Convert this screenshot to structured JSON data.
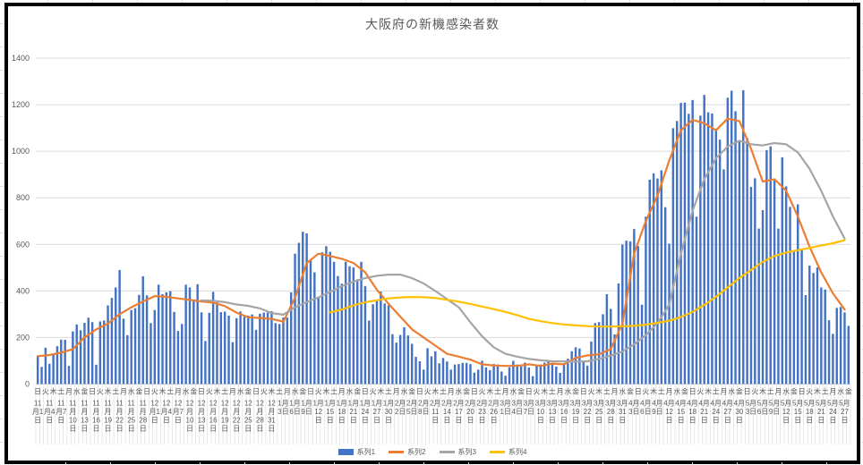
{
  "chart_data": {
    "type": "combo",
    "title": "大阪府の新機感染者数",
    "ylim": [
      0,
      1400
    ],
    "y_ticks": [
      0,
      200,
      400,
      600,
      800,
      1000,
      1200,
      1400
    ],
    "grid": true,
    "legend_position": "bottom",
    "n_days": 209,
    "x_start_date": "11月1日",
    "x_end_date": "5月28日",
    "weekday_cycle": [
      "日",
      "火",
      "木",
      "土",
      "月",
      "水",
      "金"
    ],
    "weekday_label_count": 105,
    "weekday_label_step": 2,
    "date_label_step": 3,
    "date_labels": [
      [
        "11",
        "月1",
        "日"
      ],
      [
        "11",
        "月4",
        "日"
      ],
      [
        "11",
        "月7",
        "日"
      ],
      [
        "11",
        "月",
        "10",
        "日"
      ],
      [
        "11",
        "月",
        "13",
        "日"
      ],
      [
        "11",
        "月",
        "16",
        "日"
      ],
      [
        "11",
        "月",
        "19",
        "日"
      ],
      [
        "11",
        "月",
        "22",
        "日"
      ],
      [
        "11",
        "月",
        "25",
        "日"
      ],
      [
        "11",
        "月",
        "28",
        "日"
      ],
      [
        "12",
        "月1",
        "日"
      ],
      [
        "12",
        "月4",
        "日"
      ],
      [
        "12",
        "月7",
        "日"
      ],
      [
        "12",
        "月",
        "10",
        "日"
      ],
      [
        "12",
        "月",
        "13",
        "日"
      ],
      [
        "12",
        "月",
        "16",
        "日"
      ],
      [
        "12",
        "月",
        "19",
        "日"
      ],
      [
        "12",
        "月",
        "22",
        "日"
      ],
      [
        "12",
        "月",
        "25",
        "日"
      ],
      [
        "12",
        "月",
        "28",
        "日"
      ],
      [
        "12",
        "月",
        "31",
        "日"
      ],
      [
        "1月",
        "3日"
      ],
      [
        "1月",
        "6日"
      ],
      [
        "1月",
        "9日"
      ],
      [
        "1月",
        "12",
        "日"
      ],
      [
        "1月",
        "15",
        "日"
      ],
      [
        "1月",
        "18",
        "日"
      ],
      [
        "1月",
        "21",
        "日"
      ],
      [
        "1月",
        "24",
        "日"
      ],
      [
        "1月",
        "27",
        "日"
      ],
      [
        "1月",
        "30",
        "日"
      ],
      [
        "2月",
        "2日"
      ],
      [
        "2月",
        "5日"
      ],
      [
        "2月",
        "8日"
      ],
      [
        "2月",
        "11",
        "日"
      ],
      [
        "2月",
        "14",
        "日"
      ],
      [
        "2月",
        "17",
        "日"
      ],
      [
        "2月",
        "20",
        "日"
      ],
      [
        "2月",
        "23",
        "日"
      ],
      [
        "2月",
        "26",
        "日"
      ],
      [
        "3月",
        "1日"
      ],
      [
        "3月",
        "4日"
      ],
      [
        "3月",
        "7日"
      ],
      [
        "3月",
        "10",
        "日"
      ],
      [
        "3月",
        "13",
        "日"
      ],
      [
        "3月",
        "16",
        "日"
      ],
      [
        "3月",
        "19",
        "日"
      ],
      [
        "3月",
        "22",
        "日"
      ],
      [
        "3月",
        "25",
        "日"
      ],
      [
        "3月",
        "28",
        "日"
      ],
      [
        "3月",
        "31",
        "日"
      ],
      [
        "4月",
        "3日"
      ],
      [
        "4月",
        "6日"
      ],
      [
        "4月",
        "9日"
      ],
      [
        "4月",
        "12",
        "日"
      ],
      [
        "4月",
        "15",
        "日"
      ],
      [
        "4月",
        "18",
        "日"
      ],
      [
        "4月",
        "21",
        "日"
      ],
      [
        "4月",
        "24",
        "日"
      ],
      [
        "4月",
        "27",
        "日"
      ],
      [
        "4月",
        "30",
        "日"
      ],
      [
        "5月",
        "3日"
      ],
      [
        "5月",
        "6日"
      ],
      [
        "5月",
        "9日"
      ],
      [
        "5月",
        "12",
        "日"
      ],
      [
        "5月",
        "15",
        "日"
      ],
      [
        "5月",
        "18",
        "日"
      ],
      [
        "5月",
        "21",
        "日"
      ],
      [
        "5月",
        "24",
        "日"
      ],
      [
        "5月",
        "27",
        "日"
      ]
    ],
    "bar_series": {
      "name": "系列1",
      "color": "#4472C4",
      "values": [
        123,
        74,
        156,
        87,
        125,
        163,
        191,
        190,
        78,
        226,
        256,
        231,
        263,
        285,
        266,
        83,
        269,
        273,
        338,
        370,
        415,
        490,
        281,
        210,
        318,
        326,
        383,
        463,
        381,
        262,
        318,
        427,
        386,
        394,
        399,
        310,
        228,
        258,
        427,
        415,
        357,
        429,
        308,
        185,
        306,
        396,
        351,
        309,
        311,
        294,
        180,
        283,
        312,
        289,
        294,
        299,
        233,
        302,
        307,
        307,
        313,
        262,
        258,
        286,
        286,
        394,
        560,
        607,
        654,
        647,
        532,
        480,
        374,
        566,
        592,
        568,
        525,
        464,
        431,
        525,
        506,
        501,
        450,
        525,
        421,
        273,
        343,
        357,
        397,
        346,
        338,
        214,
        178,
        211,
        244,
        209,
        173,
        117,
        98,
        62,
        154,
        119,
        141,
        89,
        112,
        97,
        62,
        84,
        86,
        91,
        91,
        86,
        49,
        62,
        100,
        72,
        60,
        86,
        84,
        54,
        36,
        72,
        100,
        84,
        76,
        92,
        71,
        34,
        82,
        84,
        92,
        98,
        91,
        75,
        48,
        87,
        109,
        141,
        158,
        153,
        100,
        79,
        183,
        262,
        266,
        300,
        386,
        323,
        213,
        432,
        599,
        616,
        613,
        666,
        593,
        341,
        719,
        878,
        905,
        883,
        918,
        760,
        603,
        1099,
        1130,
        1208,
        1209,
        1161,
        1220,
        719,
        1153,
        1242,
        1167,
        1162,
        1097,
        1050,
        922,
        1230,
        1260,
        1172,
        1043,
        1262,
        1057,
        847,
        884,
        668,
        747,
        1005,
        1021,
        874,
        668,
        974,
        849,
        761,
        576,
        772,
        582,
        382,
        509,
        477,
        501,
        415,
        406,
        274,
        216,
        327,
        331,
        308,
        250
      ]
    },
    "line_series": [
      {
        "name": "系列2",
        "color": "#ED7D31",
        "sample_step": 3,
        "values": [
          120,
          125,
          135,
          150,
          200,
          235,
          260,
          300,
          330,
          355,
          378,
          375,
          368,
          362,
          355,
          350,
          335,
          307,
          287,
          284,
          280,
          268,
          370,
          520,
          560,
          550,
          538,
          520,
          480,
          405,
          345,
          290,
          235,
          200,
          165,
          130,
          118,
          105,
          85,
          80,
          78,
          78,
          85,
          78,
          88,
          85,
          112,
          123,
          128,
          150,
          260,
          560,
          700,
          810,
          960,
          1090,
          1135,
          1120,
          1090,
          1140,
          1130,
          1010,
          870,
          880,
          830,
          720,
          590,
          480,
          390,
          320
        ]
      },
      {
        "name": "系列3",
        "color": "#A5A5A5",
        "sample_step": 3,
        "values": [
          null,
          null,
          null,
          null,
          null,
          null,
          null,
          null,
          null,
          null,
          null,
          null,
          null,
          null,
          360,
          358,
          352,
          342,
          336,
          325,
          305,
          298,
          330,
          352,
          372,
          396,
          420,
          440,
          455,
          465,
          470,
          470,
          455,
          432,
          400,
          365,
          330,
          265,
          205,
          158,
          130,
          118,
          108,
          102,
          98,
          97,
          96,
          98,
          108,
          122,
          140,
          170,
          210,
          262,
          340,
          560,
          745,
          880,
          970,
          1020,
          1045,
          1030,
          1025,
          1035,
          1030,
          995,
          925,
          830,
          720,
          625
        ]
      },
      {
        "name": "系列4",
        "color": "#FFC000",
        "sample_step": 3,
        "values": [
          null,
          null,
          null,
          null,
          null,
          null,
          null,
          null,
          null,
          null,
          null,
          null,
          null,
          null,
          null,
          null,
          null,
          null,
          null,
          null,
          null,
          null,
          null,
          null,
          null,
          308,
          320,
          338,
          352,
          360,
          368,
          372,
          374,
          373,
          370,
          362,
          354,
          344,
          333,
          322,
          310,
          296,
          280,
          270,
          262,
          256,
          252,
          249,
          247,
          247,
          248,
          250,
          255,
          263,
          272,
          288,
          310,
          340,
          375,
          415,
          455,
          490,
          525,
          550,
          565,
          575,
          585,
          595,
          605,
          618
        ]
      }
    ],
    "legend": [
      "系列1",
      "系列2",
      "系列3",
      "系列4"
    ]
  },
  "colors": {
    "gridline": "#D9D9D9",
    "axis_text": "#595959",
    "title_text": "#595959",
    "chart_border": "#000000"
  }
}
